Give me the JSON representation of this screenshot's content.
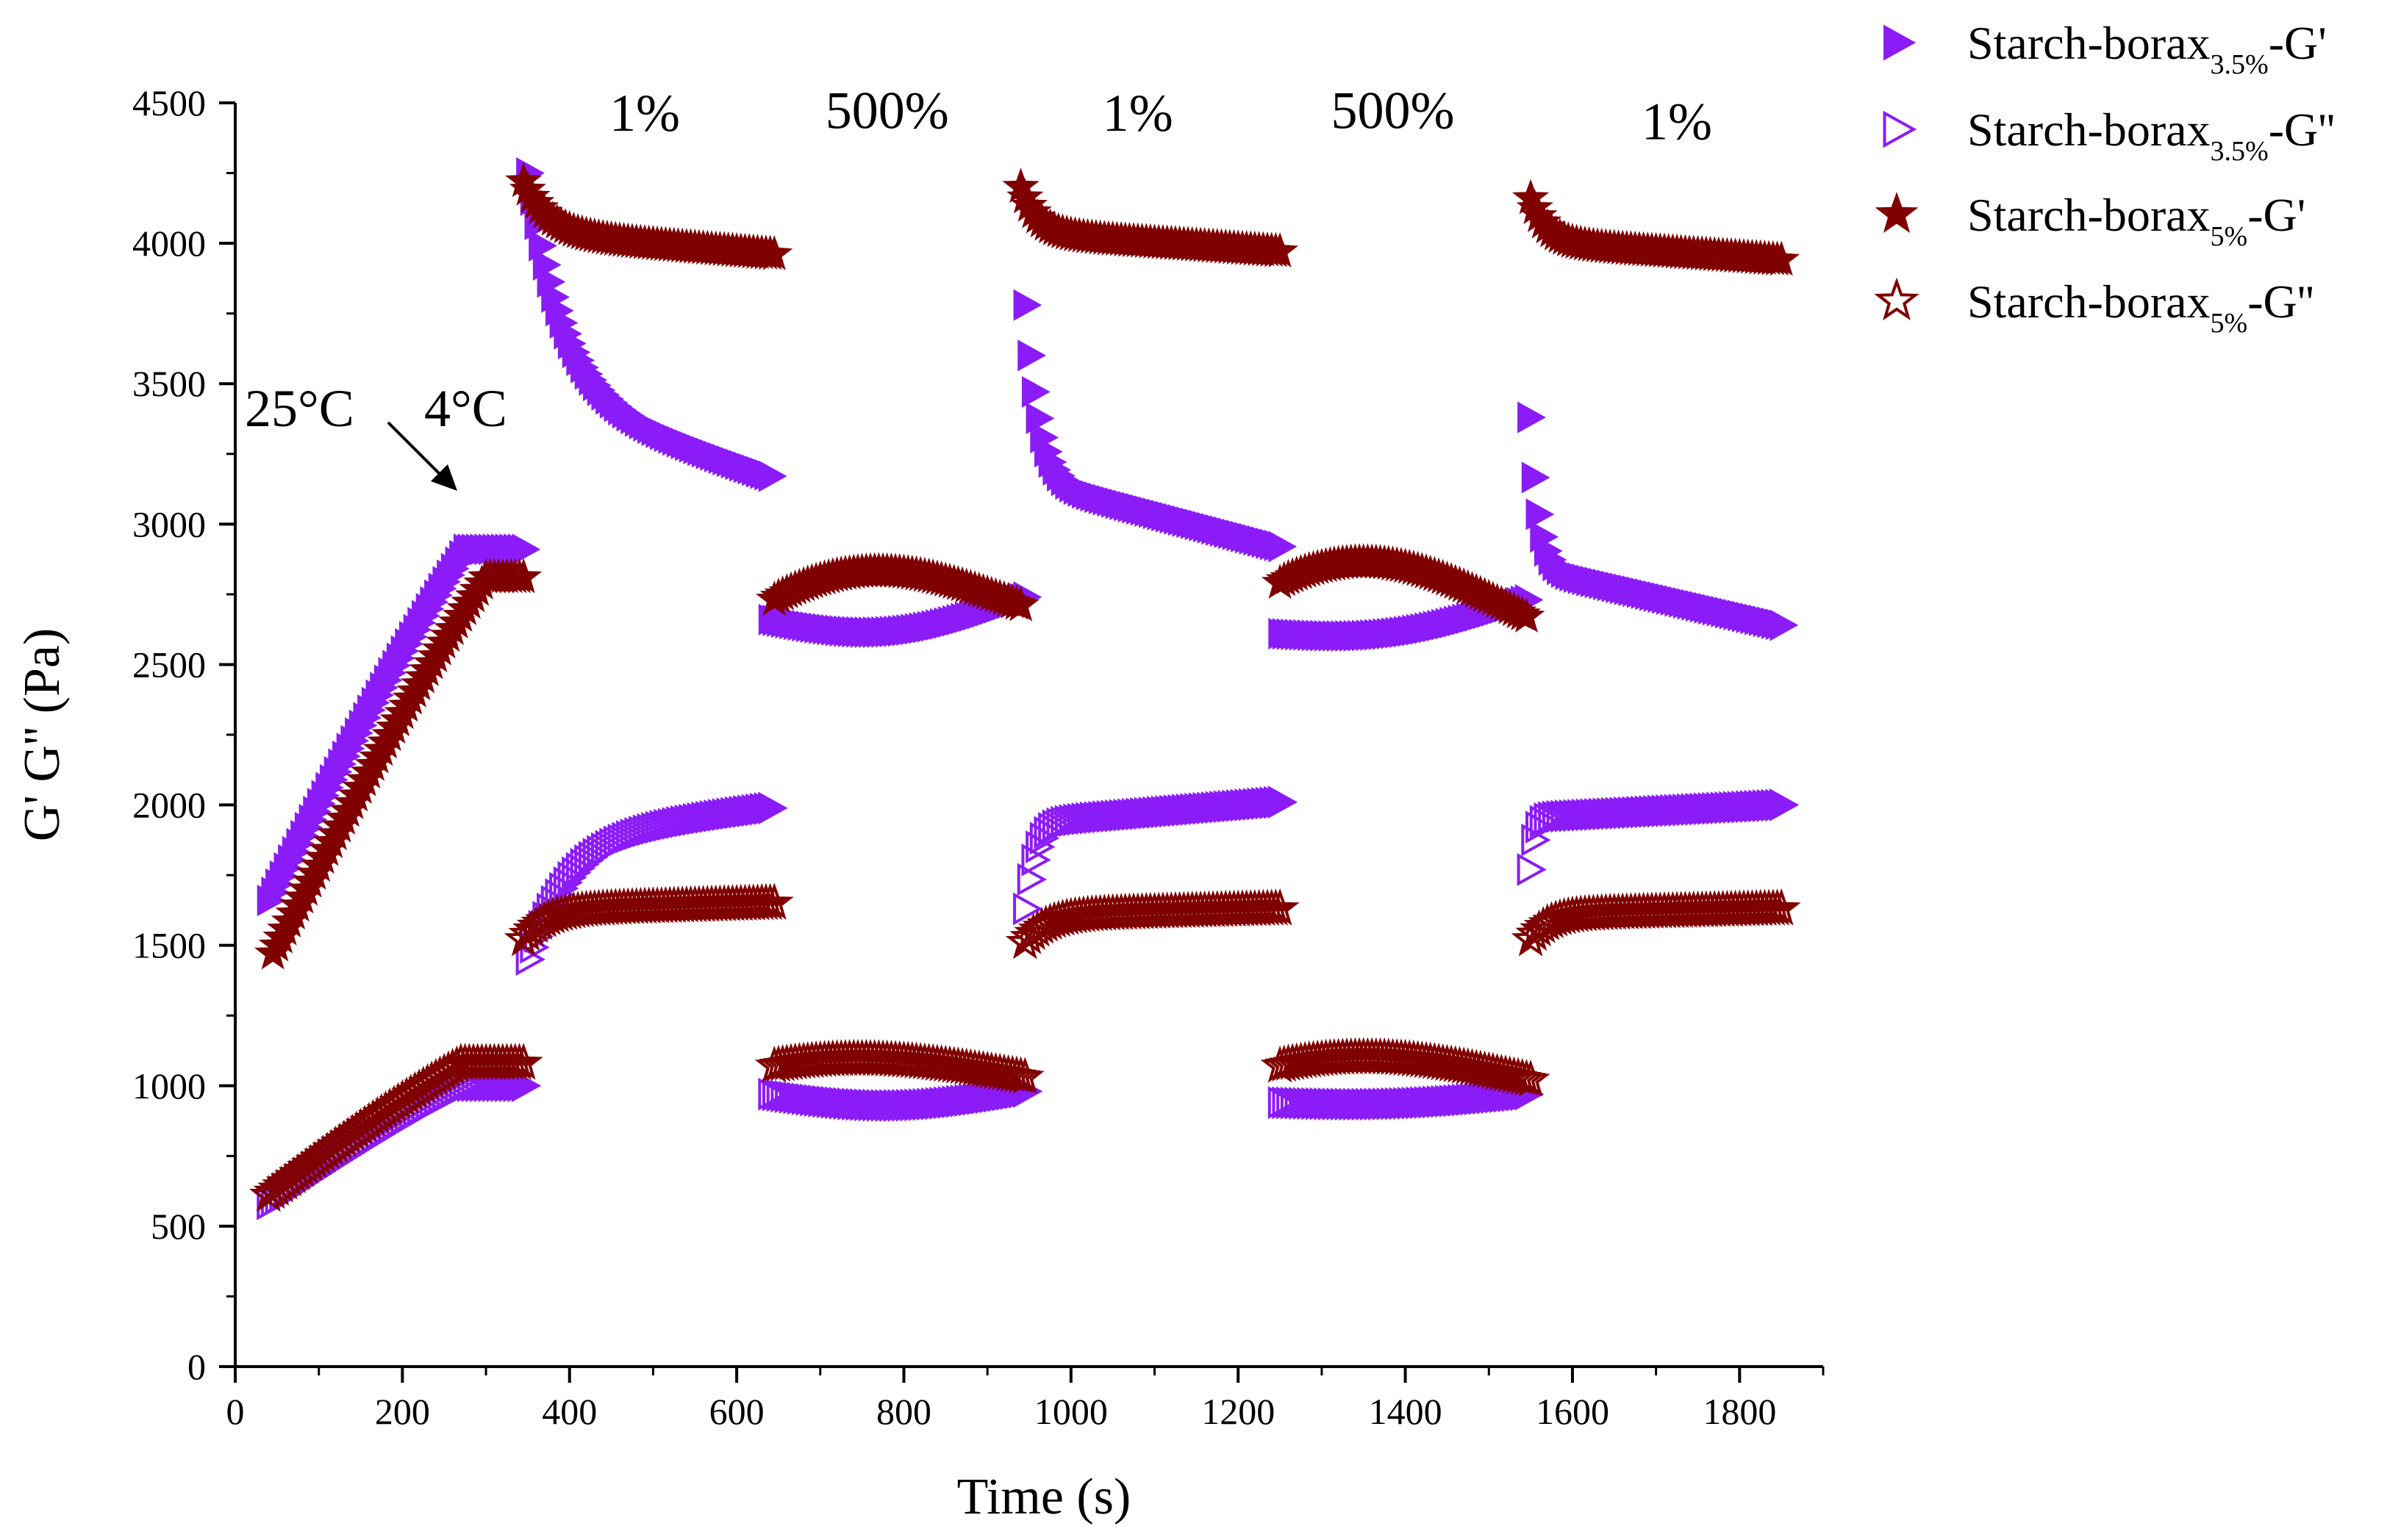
{
  "chart_data": {
    "type": "scatter",
    "title": "",
    "xlabel": "Time (s)",
    "ylabel": "G' G'' (Pa)",
    "xlim": [
      0,
      1900
    ],
    "ylim": [
      0,
      4500
    ],
    "xticks": [
      0,
      200,
      400,
      600,
      800,
      1000,
      1200,
      1400,
      1600,
      1800
    ],
    "yticks": [
      0,
      500,
      1000,
      1500,
      2000,
      2500,
      3000,
      3500,
      4000,
      4500
    ],
    "xtick_labels": [
      "0",
      "200",
      "400",
      "600",
      "800",
      "1000",
      "1200",
      "1400",
      "1600",
      "1800"
    ],
    "ytick_labels": [
      "0",
      "500",
      "1000",
      "1500",
      "2000",
      "2500",
      "3000",
      "3500",
      "4000",
      "4500"
    ],
    "legend_position": "top-right (outside plot)",
    "colors": {
      "purple": "#8B1CF8",
      "maroon": "#800000"
    },
    "annotations": {
      "temp_start": "25°C",
      "temp_end": "4°C",
      "strain_labels": [
        {
          "text": "1%",
          "x": 490,
          "y": 4400
        },
        {
          "text": "500%",
          "x": 780,
          "y": 4410
        },
        {
          "text": "1%",
          "x": 1080,
          "y": 4400
        },
        {
          "text": "500%",
          "x": 1385,
          "y": 4410
        },
        {
          "text": "1%",
          "x": 1725,
          "y": 4370
        }
      ]
    },
    "series": [
      {
        "name": "Starch-borax",
        "subscript": "3.5%",
        "suffix": "-G'",
        "marker": "triangle-filled",
        "color": "#8B1CF8",
        "segments": [
          {
            "x_start": 40,
            "x_end": 345,
            "y_shape": "sat",
            "y_start": 1660,
            "y_end": 2910,
            "x_sat": 275
          },
          {
            "x_start": 350,
            "x_end": 640,
            "y_shape": "decay",
            "y_start": 4250,
            "y_end": 3170,
            "tau": 40
          },
          {
            "x_start": 640,
            "x_end": 945,
            "y_shape": "dip",
            "y_start": 2660,
            "y_end": 2740,
            "depth": 90
          },
          {
            "x_start": 945,
            "x_end": 1250,
            "y_shape": "decay",
            "y_start": 3780,
            "y_end": 2920,
            "tau": 15
          },
          {
            "x_start": 1250,
            "x_end": 1545,
            "y_shape": "dip",
            "y_start": 2610,
            "y_end": 2730,
            "depth": 60
          },
          {
            "x_start": 1548,
            "x_end": 1850,
            "y_shape": "decay",
            "y_start": 3380,
            "y_end": 2640,
            "tau": 10
          }
        ]
      },
      {
        "name": "Starch-borax",
        "subscript": "3.5%",
        "suffix": "-G''",
        "marker": "triangle-open",
        "color": "#8B1CF8",
        "segments": [
          {
            "x_start": 40,
            "x_end": 345,
            "y_shape": "sat",
            "y_start": 580,
            "y_end": 1000,
            "x_sat": 275
          },
          {
            "x_start": 350,
            "x_end": 640,
            "y_shape": "rise",
            "y_start": 1450,
            "y_end": 1990,
            "tau": 50
          },
          {
            "x_start": 640,
            "x_end": 945,
            "y_shape": "dip",
            "y_start": 970,
            "y_end": 980,
            "depth": 50
          },
          {
            "x_start": 945,
            "x_end": 1250,
            "y_shape": "rise",
            "y_start": 1630,
            "y_end": 2010,
            "tau": 12
          },
          {
            "x_start": 1250,
            "x_end": 1545,
            "y_shape": "dip",
            "y_start": 940,
            "y_end": 970,
            "depth": 20
          },
          {
            "x_start": 1548,
            "x_end": 1850,
            "y_shape": "rise",
            "y_start": 1770,
            "y_end": 2000,
            "tau": 6
          }
        ]
      },
      {
        "name": "Starch-borax",
        "subscript": "5%",
        "suffix": "-G'",
        "marker": "star-filled",
        "color": "#800000",
        "segments": [
          {
            "x_start": 45,
            "x_end": 345,
            "y_shape": "sat",
            "y_start": 1470,
            "y_end": 2810,
            "x_sat": 300
          },
          {
            "x_start": 345,
            "x_end": 645,
            "y_shape": "decay",
            "y_start": 4220,
            "y_end": 3960,
            "tau": 30
          },
          {
            "x_start": 645,
            "x_end": 940,
            "y_shape": "hump",
            "y_start": 2730,
            "y_end": 2710,
            "height": 110
          },
          {
            "x_start": 940,
            "x_end": 1250,
            "y_shape": "decay",
            "y_start": 4200,
            "y_end": 3970,
            "tau": 20
          },
          {
            "x_start": 1250,
            "x_end": 1545,
            "y_shape": "hump",
            "y_start": 2790,
            "y_end": 2670,
            "height": 120
          },
          {
            "x_start": 1550,
            "x_end": 1850,
            "y_shape": "decay",
            "y_start": 4160,
            "y_end": 3940,
            "tau": 20
          }
        ]
      },
      {
        "name": "Starch-borax",
        "subscript": "5%",
        "suffix": "-G''",
        "marker": "star-open",
        "color": "#800000",
        "segments": [
          {
            "x_start": 40,
            "x_end": 345,
            "y_shape": "sat",
            "y_start": 610,
            "y_end": 1080,
            "x_sat": 270
          },
          {
            "x_start": 345,
            "x_end": 645,
            "y_shape": "rise",
            "y_start": 1520,
            "y_end": 1650,
            "tau": 25
          },
          {
            "x_start": 645,
            "x_end": 945,
            "y_shape": "hump",
            "y_start": 1070,
            "y_end": 1030,
            "height": 40
          },
          {
            "x_start": 945,
            "x_end": 1250,
            "y_shape": "rise",
            "y_start": 1510,
            "y_end": 1630,
            "tau": 25
          },
          {
            "x_start": 1250,
            "x_end": 1550,
            "y_shape": "hump",
            "y_start": 1070,
            "y_end": 1020,
            "height": 50
          },
          {
            "x_start": 1550,
            "x_end": 1850,
            "y_shape": "rise",
            "y_start": 1520,
            "y_end": 1630,
            "tau": 20
          }
        ]
      }
    ]
  }
}
